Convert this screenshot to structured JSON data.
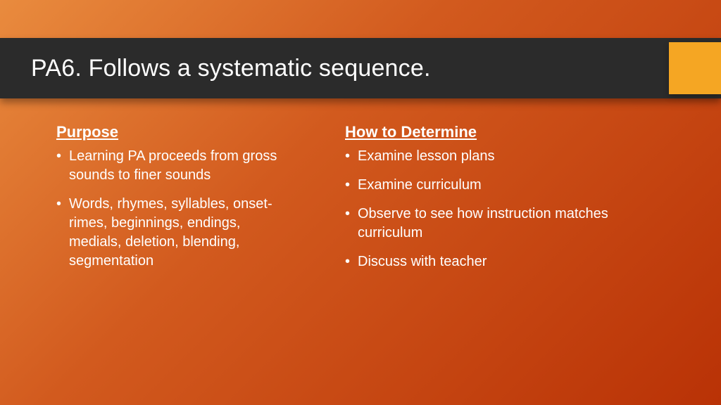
{
  "slide": {
    "title": "PA6. Follows a systematic sequence.",
    "background_gradient": {
      "from": "#e98b3e",
      "mid": "#d25a1e",
      "to": "#b93206",
      "angle_deg": 135
    },
    "title_bar": {
      "bg": "#2b2b2b",
      "text_color": "#ffffff",
      "fontsize": 34,
      "shadow": "0 6px 10px rgba(0,0,0,0.35)"
    },
    "accent_block": {
      "color": "#f5a623",
      "width": 74,
      "height": 74
    },
    "text_color": "#ffffff",
    "heading_fontsize": 22,
    "body_fontsize": 20,
    "columns": {
      "left": {
        "heading": "Purpose",
        "items": [
          "Learning PA proceeds from gross sounds to finer sounds",
          "Words, rhymes, syllables, onset-rimes, beginnings, endings, medials, deletion, blending, segmentation"
        ]
      },
      "right": {
        "heading": "How to Determine",
        "items": [
          "Examine lesson plans",
          "Examine curriculum",
          "Observe to see how instruction matches curriculum",
          "Discuss with teacher"
        ]
      }
    }
  }
}
